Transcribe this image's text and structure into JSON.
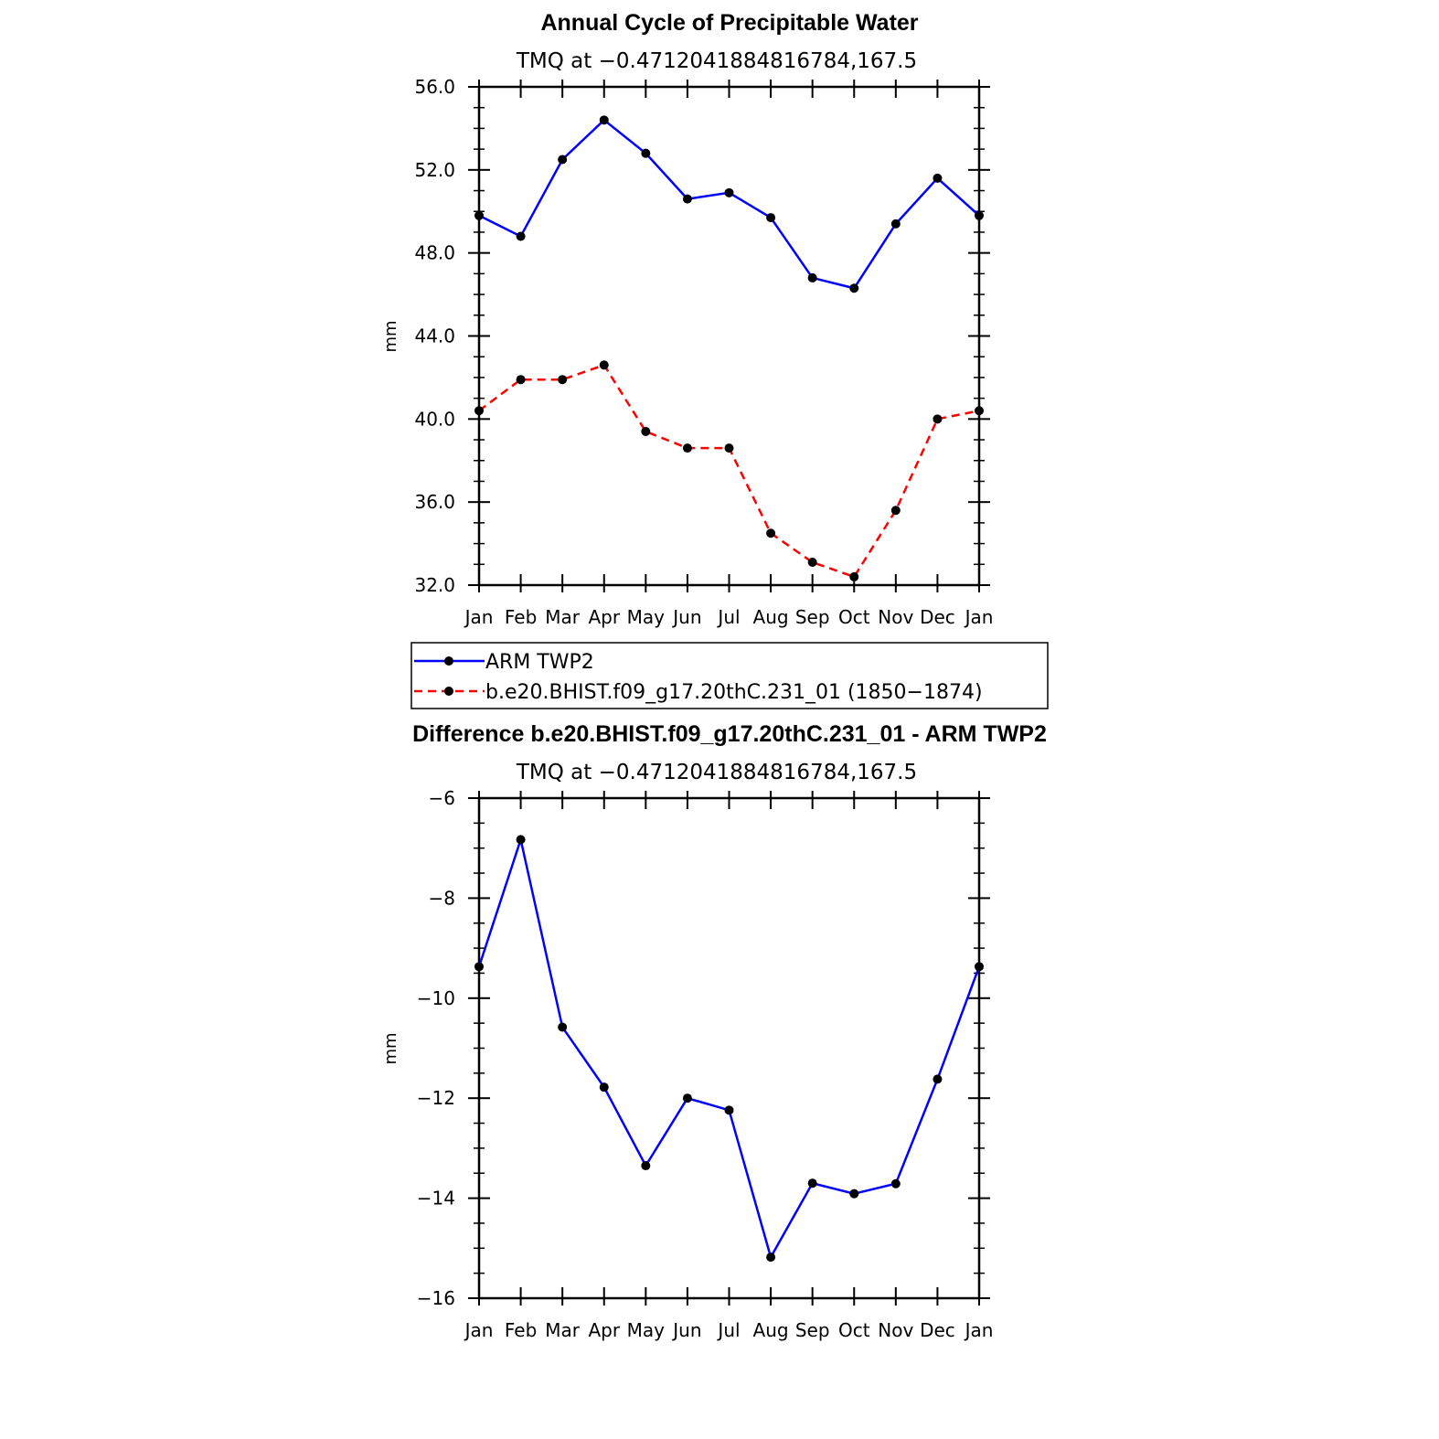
{
  "chart_data": [
    {
      "type": "line",
      "title": "Annual Cycle of Precipitable Water",
      "subtitle": "TMQ at −0.4712041884816784,167.5",
      "xlabel": "",
      "ylabel": "mm",
      "categories": [
        "Jan",
        "Feb",
        "Mar",
        "Apr",
        "May",
        "Jun",
        "Jul",
        "Aug",
        "Sep",
        "Oct",
        "Nov",
        "Dec",
        "Jan"
      ],
      "ylim": [
        32.0,
        56.0
      ],
      "yticks": [
        32.0,
        36.0,
        40.0,
        44.0,
        48.0,
        52.0,
        56.0
      ],
      "ytick_labels": [
        "32.0",
        "36.0",
        "40.0",
        "44.0",
        "48.0",
        "52.0",
        "56.0"
      ],
      "grid": false,
      "legend": "below",
      "series": [
        {
          "name": "ARM TWP2",
          "color": "#0000ff",
          "dash": "solid",
          "values": [
            49.8,
            48.8,
            52.5,
            54.4,
            52.8,
            50.6,
            50.9,
            49.7,
            46.8,
            46.3,
            49.4,
            51.6,
            49.8
          ]
        },
        {
          "name": "b.e20.BHIST.f09_g17.20thC.231_01 (1850−1874)",
          "color": "#ff0000",
          "dash": "dashed",
          "values": [
            40.4,
            41.9,
            41.9,
            42.6,
            39.4,
            38.6,
            38.6,
            34.5,
            33.1,
            32.4,
            35.6,
            40.0,
            40.4
          ]
        }
      ]
    },
    {
      "type": "line",
      "title": "Difference b.e20.BHIST.f09_g17.20thC.231_01 - ARM TWP2",
      "subtitle": "TMQ at −0.4712041884816784,167.5",
      "xlabel": "",
      "ylabel": "mm",
      "categories": [
        "Jan",
        "Feb",
        "Mar",
        "Apr",
        "May",
        "Jun",
        "Jul",
        "Aug",
        "Sep",
        "Oct",
        "Nov",
        "Dec",
        "Jan"
      ],
      "ylim": [
        -16,
        -6
      ],
      "yticks": [
        -16,
        -14,
        -12,
        -10,
        -8,
        -6
      ],
      "ytick_labels": [
        "−16",
        "−14",
        "−12",
        "−10",
        "−8",
        "−6"
      ],
      "grid": false,
      "series": [
        {
          "color": "#0000ff",
          "dash": "solid",
          "values": [
            -9.37,
            -6.83,
            -10.58,
            -11.78,
            -13.35,
            -12.0,
            -12.24,
            -15.18,
            -13.7,
            -13.91,
            -13.71,
            -11.62,
            -9.37
          ]
        }
      ]
    }
  ]
}
